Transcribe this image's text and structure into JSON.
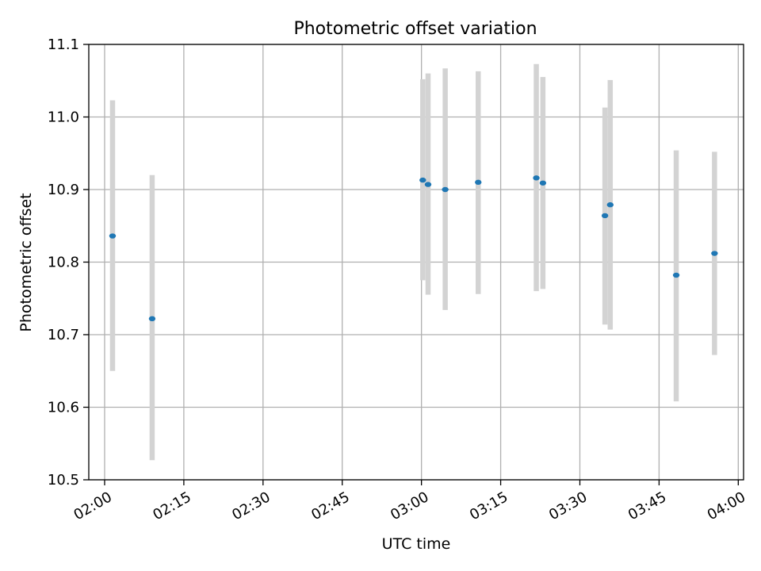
{
  "chart_data": {
    "type": "scatter",
    "title": "Photometric offset variation",
    "xlabel": "UTC time",
    "ylabel": "Photometric offset",
    "xlim": [
      "01:57",
      "04:01"
    ],
    "ylim": [
      10.5,
      11.1
    ],
    "x_ticks": [
      "02:00",
      "02:15",
      "02:30",
      "02:45",
      "03:00",
      "03:15",
      "03:30",
      "03:45",
      "04:00"
    ],
    "y_ticks": [
      "10.5",
      "10.6",
      "10.7",
      "10.8",
      "10.9",
      "11.0",
      "11.1"
    ],
    "grid": true,
    "points": [
      {
        "x": "02:01:30",
        "y": 10.836,
        "ylow": 10.65,
        "yhigh": 11.023
      },
      {
        "x": "02:09:00",
        "y": 10.722,
        "ylow": 10.527,
        "yhigh": 10.92
      },
      {
        "x": "03:00:15",
        "y": 10.913,
        "ylow": 10.775,
        "yhigh": 11.052
      },
      {
        "x": "03:01:15",
        "y": 10.907,
        "ylow": 10.755,
        "yhigh": 11.06
      },
      {
        "x": "03:04:30",
        "y": 10.9,
        "ylow": 10.734,
        "yhigh": 11.067
      },
      {
        "x": "03:10:45",
        "y": 10.91,
        "ylow": 10.756,
        "yhigh": 11.063
      },
      {
        "x": "03:21:45",
        "y": 10.916,
        "ylow": 10.76,
        "yhigh": 11.073
      },
      {
        "x": "03:23:00",
        "y": 10.909,
        "ylow": 10.763,
        "yhigh": 11.055
      },
      {
        "x": "03:34:45",
        "y": 10.864,
        "ylow": 10.714,
        "yhigh": 11.013
      },
      {
        "x": "03:35:45",
        "y": 10.879,
        "ylow": 10.707,
        "yhigh": 11.051
      },
      {
        "x": "03:48:15",
        "y": 10.782,
        "ylow": 10.608,
        "yhigh": 10.954
      },
      {
        "x": "03:55:30",
        "y": 10.812,
        "ylow": 10.672,
        "yhigh": 10.952
      }
    ],
    "colors": {
      "point": "#1f77b4",
      "errorbar": "#d3d3d3",
      "grid": "#b0b0b0",
      "axes": "#000000"
    }
  }
}
